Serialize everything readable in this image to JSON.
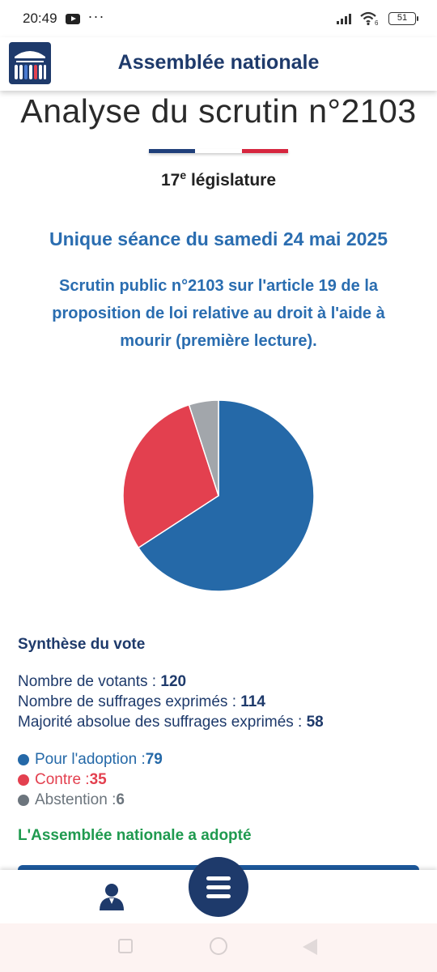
{
  "status_bar": {
    "time": "20:49",
    "overflow": "···",
    "battery": "51",
    "network_badge": "6"
  },
  "header": {
    "title": "Assemblée nationale"
  },
  "page": {
    "title": "Analyse du scrutin n°2103",
    "legislature_number": "17",
    "legislature_suffix": "e",
    "legislature_label": "législature",
    "seance": "Unique séance du samedi 24 mai 2025",
    "description": "Scrutin public n°2103 sur l'article 19 de la proposition de loi relative au droit à l'aide à mourir (première lecture).",
    "tricolor": [
      "#1f3f7a",
      "#ffffff",
      "#d6253e"
    ]
  },
  "synthese": {
    "title": "Synthèse du vote",
    "votants_label": "Nombre de votants : ",
    "votants_value": "120",
    "exprimes_label": "Nombre de suffrages exprimés : ",
    "exprimes_value": "114",
    "majorite_label": "Majorité absolue des suffrages exprimés : ",
    "majorite_value": "58",
    "pour_label": "Pour l'adoption : ",
    "pour_value": "79",
    "contre_label": "Contre : ",
    "contre_value": "35",
    "abstention_label": "Abstention : ",
    "abstention_value": "6",
    "result": "L'Assemblée nationale a adopté"
  },
  "chart_data": {
    "type": "pie",
    "categories": [
      "Pour l'adoption",
      "Contre",
      "Abstention"
    ],
    "values": [
      79,
      35,
      6
    ],
    "colors": [
      "#2569a8",
      "#e3404f",
      "#a2a6ab"
    ]
  },
  "colors": {
    "pour": "#2569a8",
    "contre": "#e3404f",
    "abstention": "#6c757d",
    "result": "#1f9a4f",
    "navy": "#1e3a6b"
  },
  "icons": {
    "user": "user-icon",
    "menu": "hamburger-menu-icon"
  }
}
